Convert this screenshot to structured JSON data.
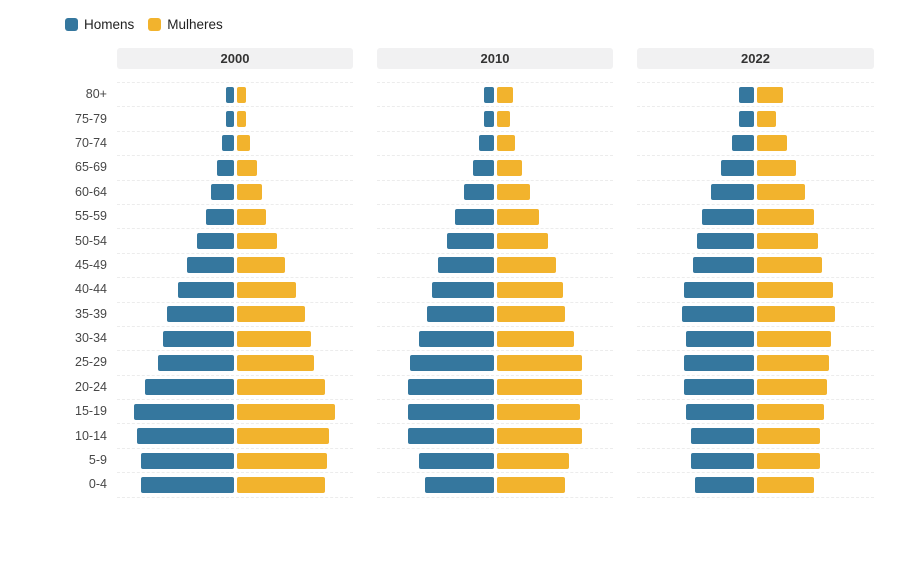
{
  "legend": {
    "homens_label": "Homens",
    "mulheres_label": "Mulheres"
  },
  "colors": {
    "men": "#35779E",
    "women": "#F2B32D",
    "header_background": "#F1F1F2",
    "gridline": "#ECECEC",
    "header_text": "#333333",
    "axis_label_text": "#474747",
    "legend_text": "#222222",
    "background": "#FFFFFF"
  },
  "chart_data": {
    "type": "bar",
    "variant": "population-pyramid-small-multiples",
    "title": "",
    "legend_entries": [
      "Homens",
      "Mulheres"
    ],
    "legend_position": "top-left",
    "x_axis_tick_labels_visible": false,
    "grid": "horizontal-dashed-per-panel",
    "age_groups_top_to_bottom": [
      "80+",
      "75-79",
      "70-74",
      "65-69",
      "60-64",
      "55-59",
      "50-54",
      "45-49",
      "40-44",
      "35-39",
      "30-34",
      "25-29",
      "20-24",
      "15-19",
      "10-14",
      "5-9",
      "0-4"
    ],
    "value_unit": "share of population, % (estimated from bar lengths; axis unlabeled)",
    "panels": [
      {
        "year": "2000",
        "men": [
          0.4,
          0.4,
          0.6,
          0.9,
          1.2,
          1.5,
          2.0,
          2.5,
          3.0,
          3.6,
          3.8,
          4.1,
          4.8,
          5.4,
          5.2,
          5.0,
          5.0
        ],
        "women": [
          0.5,
          0.5,
          0.7,
          1.1,
          1.4,
          1.6,
          2.2,
          2.6,
          3.2,
          3.7,
          4.0,
          4.2,
          4.8,
          5.3,
          5.0,
          4.9,
          4.8
        ]
      },
      {
        "year": "2010",
        "men": [
          0.5,
          0.5,
          0.8,
          1.1,
          1.6,
          2.1,
          2.5,
          3.0,
          3.3,
          3.6,
          4.0,
          4.5,
          4.6,
          4.6,
          4.6,
          4.0,
          3.7
        ],
        "women": [
          0.9,
          0.7,
          1.0,
          1.4,
          1.8,
          2.3,
          2.8,
          3.2,
          3.6,
          3.7,
          4.2,
          4.6,
          4.6,
          4.5,
          4.6,
          3.9,
          3.7
        ]
      },
      {
        "year": "2022",
        "men": [
          0.8,
          0.8,
          1.2,
          1.8,
          2.3,
          2.8,
          3.1,
          3.3,
          3.8,
          3.9,
          3.7,
          3.8,
          3.8,
          3.7,
          3.4,
          3.4,
          3.2
        ],
        "women": [
          1.4,
          1.0,
          1.6,
          2.1,
          2.6,
          3.1,
          3.3,
          3.5,
          4.1,
          4.2,
          4.0,
          3.9,
          3.8,
          3.6,
          3.4,
          3.4,
          3.1
        ]
      }
    ]
  }
}
